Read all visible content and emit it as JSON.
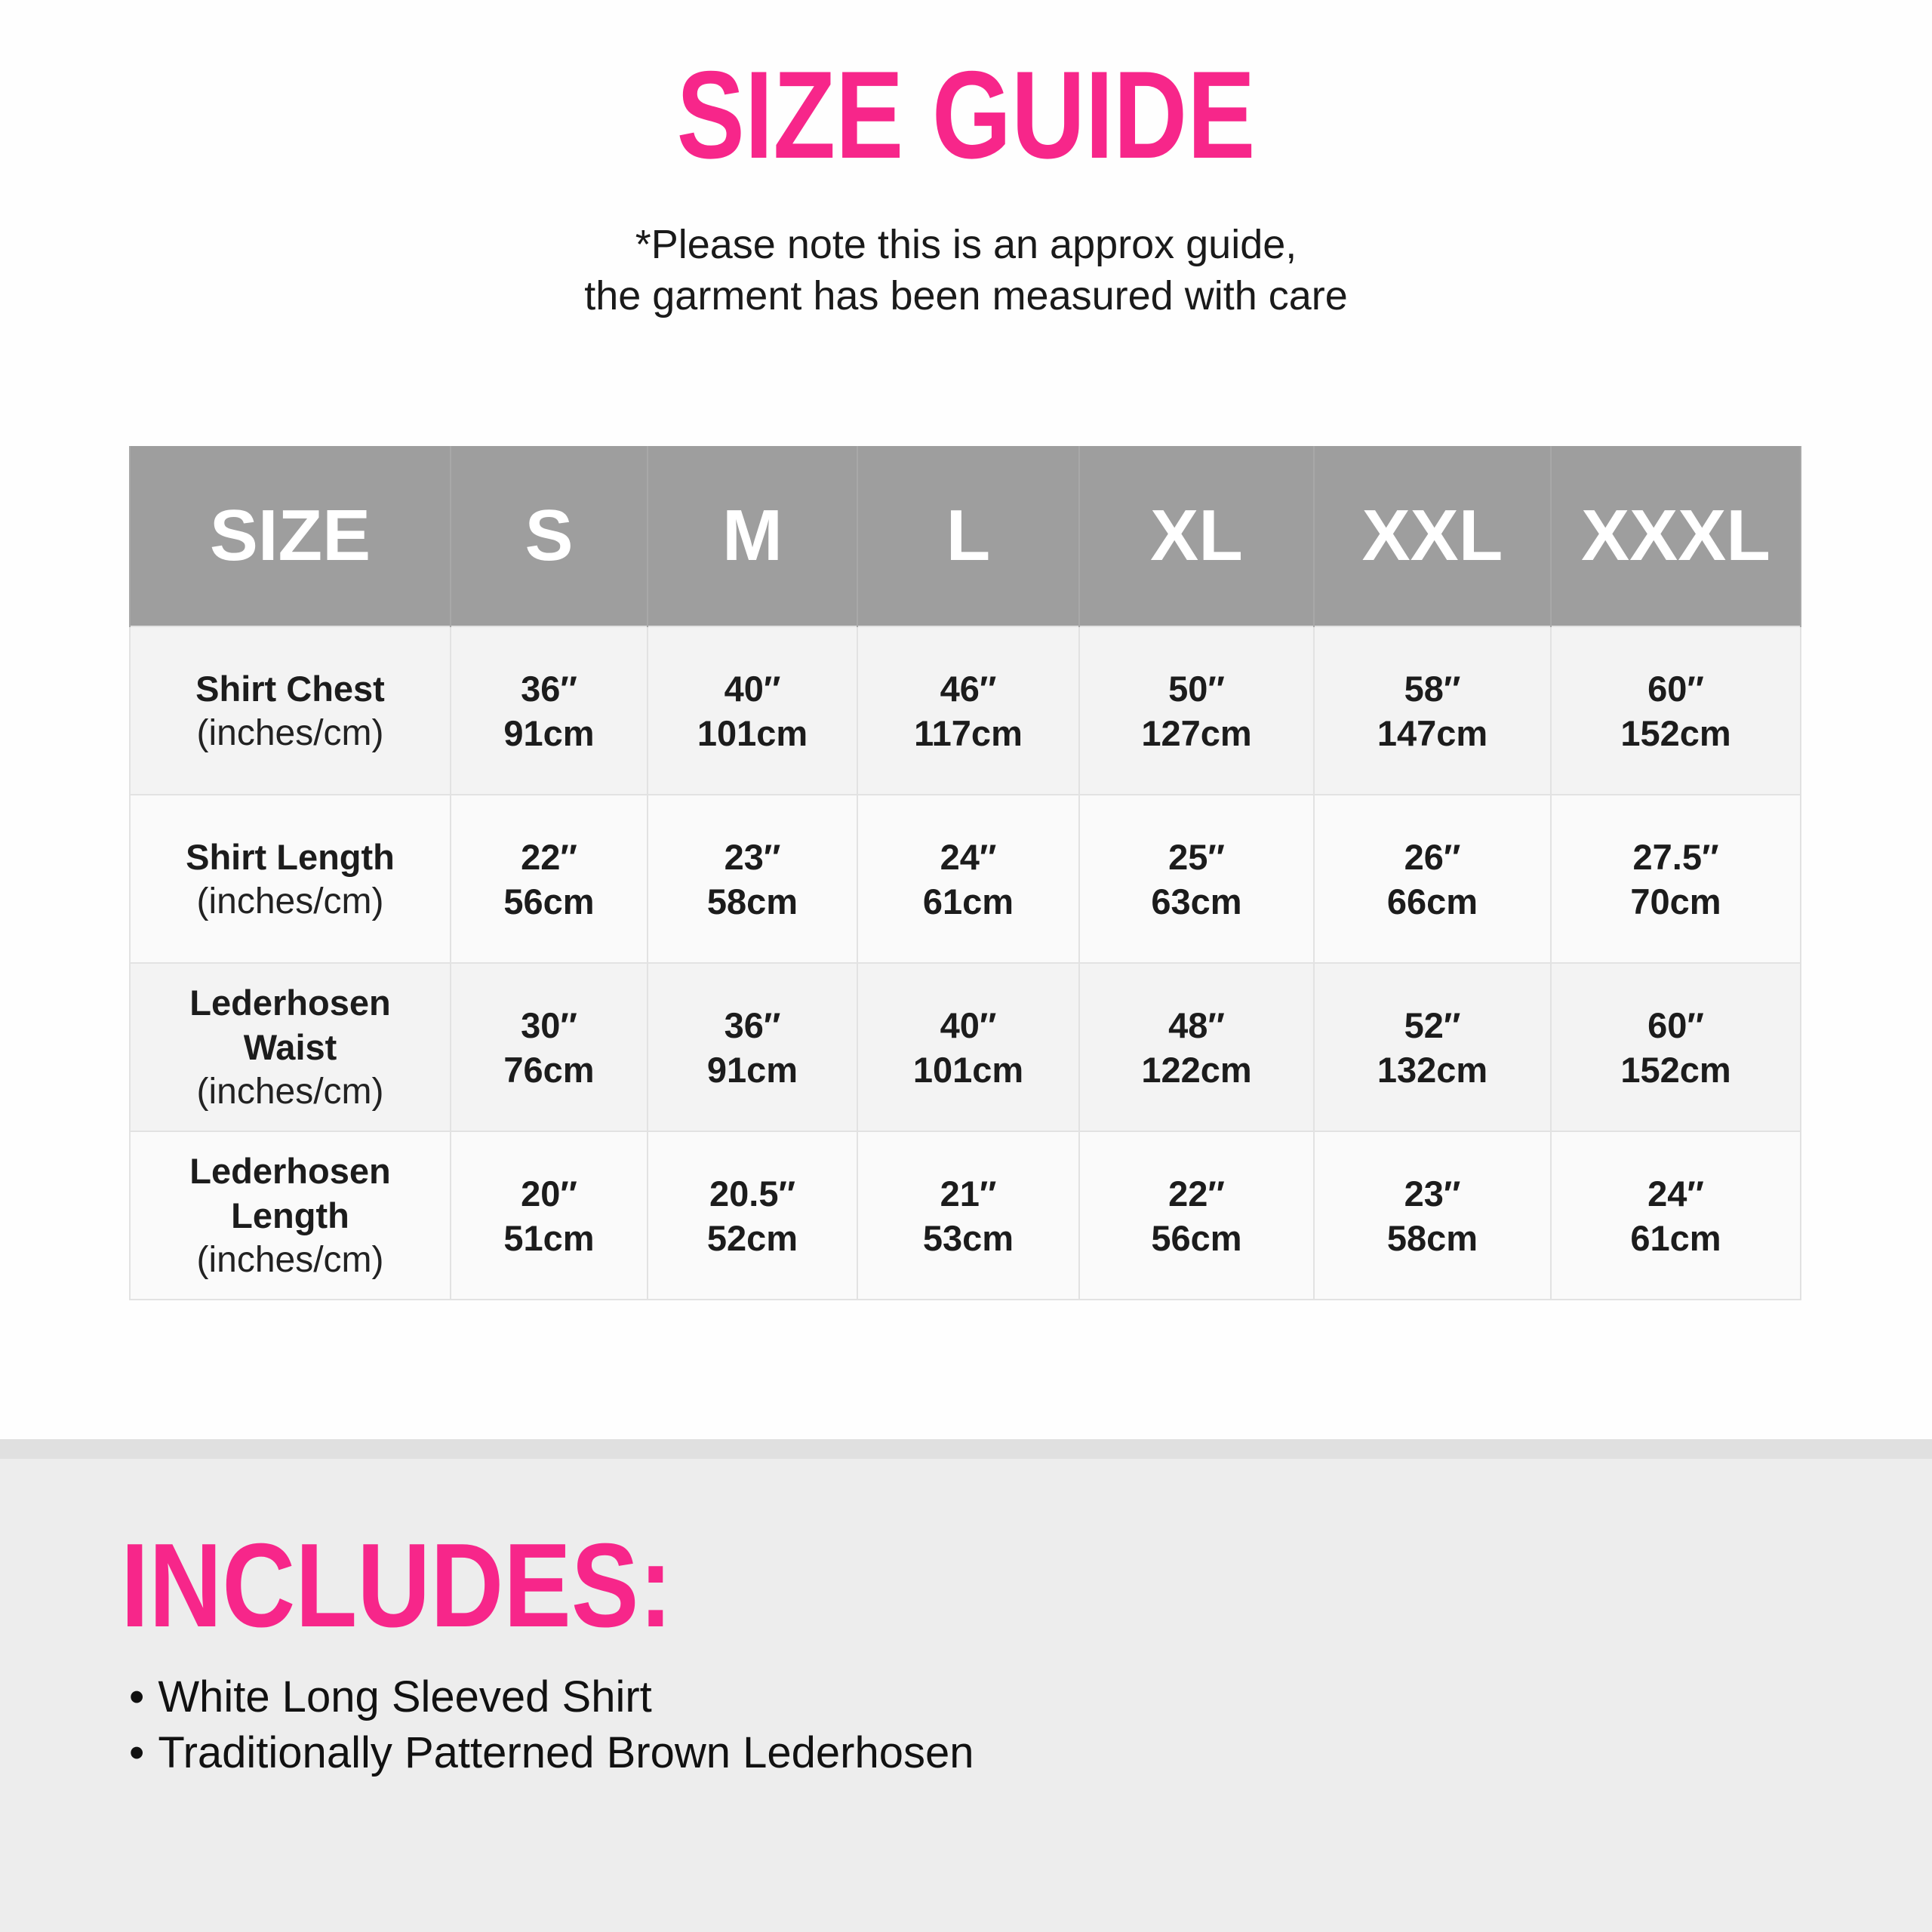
{
  "title": "SIZE GUIDE",
  "note": [
    "*Please note this is an approx guide,",
    "the garment has been measured with care"
  ],
  "table": {
    "headers": [
      "SIZE",
      "S",
      "M",
      "L",
      "XL",
      "XXL",
      "XXXL"
    ],
    "rows": [
      {
        "label": [
          "Shirt Chest"
        ],
        "unit": "(inches/cm)",
        "values": [
          [
            "36″",
            "91cm"
          ],
          [
            "40″",
            "101cm"
          ],
          [
            "46″",
            "117cm"
          ],
          [
            "50″",
            "127cm"
          ],
          [
            "58″",
            "147cm"
          ],
          [
            "60″",
            "152cm"
          ]
        ]
      },
      {
        "label": [
          "Shirt Length"
        ],
        "unit": "(inches/cm)",
        "values": [
          [
            "22″",
            "56cm"
          ],
          [
            "23″",
            "58cm"
          ],
          [
            "24″",
            "61cm"
          ],
          [
            "25″",
            "63cm"
          ],
          [
            "26″",
            "66cm"
          ],
          [
            "27.5″",
            "70cm"
          ]
        ]
      },
      {
        "label": [
          "Lederhosen",
          "Waist"
        ],
        "unit": "(inches/cm)",
        "values": [
          [
            "30″",
            "76cm"
          ],
          [
            "36″",
            "91cm"
          ],
          [
            "40″",
            "101cm"
          ],
          [
            "48″",
            "122cm"
          ],
          [
            "52″",
            "132cm"
          ],
          [
            "60″",
            "152cm"
          ]
        ]
      },
      {
        "label": [
          "Lederhosen",
          "Length"
        ],
        "unit": "(inches/cm)",
        "values": [
          [
            "20″",
            "51cm"
          ],
          [
            "20.5″",
            "52cm"
          ],
          [
            "21″",
            "53cm"
          ],
          [
            "22″",
            "56cm"
          ],
          [
            "23″",
            "58cm"
          ],
          [
            "24″",
            "61cm"
          ]
        ]
      }
    ]
  },
  "includes": {
    "title": "INCLUDES:",
    "items": [
      "White Long Sleeved Shirt",
      "Traditionally Patterned Brown Lederhosen"
    ]
  },
  "colors": {
    "accent": "#f7268a",
    "header_bg": "#9e9e9e",
    "section_bg": "#ededed"
  }
}
